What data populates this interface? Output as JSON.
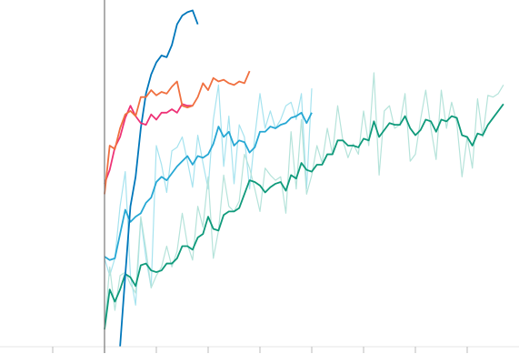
{
  "chart_data": {
    "type": "line",
    "xlim": [
      -20,
      80
    ],
    "ylim": [
      0.519,
      0.719
    ],
    "xticks": [
      -10,
      0,
      10,
      20,
      30,
      40,
      50,
      60,
      70
    ],
    "series": [
      {
        "color": "#a6e3ef",
        "width": 1.2,
        "x": [
          0,
          1,
          2,
          3,
          4,
          5,
          6,
          7,
          8,
          9,
          10,
          11,
          12,
          13,
          14,
          15,
          16,
          17,
          18,
          19,
          20,
          21,
          22,
          23,
          24,
          25,
          26,
          27,
          28,
          29,
          30,
          31,
          32,
          33,
          34,
          35,
          36,
          37,
          38,
          39,
          40
        ],
        "values": [
          0.57,
          0.56,
          0.57,
          0.6,
          0.62,
          0.56,
          0.543,
          0.593,
          0.57,
          0.553,
          0.635,
          0.624,
          0.608,
          0.632,
          0.634,
          0.64,
          0.626,
          0.611,
          0.641,
          0.625,
          0.61,
          0.65,
          0.67,
          0.623,
          0.652,
          0.613,
          0.647,
          0.64,
          0.61,
          0.64,
          0.665,
          0.645,
          0.655,
          0.645,
          0.65,
          0.658,
          0.66,
          0.65,
          0.665,
          0.61,
          0.668
        ]
      },
      {
        "color": "#b5e3da",
        "width": 1.2,
        "x": [
          0,
          1,
          2,
          3,
          4,
          5,
          6,
          7,
          8,
          9,
          10,
          11,
          12,
          13,
          14,
          15,
          16,
          17,
          18,
          19,
          20,
          21,
          22,
          23,
          24,
          25,
          26,
          27,
          28,
          29,
          30,
          31,
          32,
          33,
          34,
          35,
          36,
          37,
          38,
          39,
          40,
          41,
          42,
          43,
          44,
          45,
          46,
          47,
          48,
          49,
          50,
          51,
          52,
          53,
          54,
          55,
          56,
          57,
          58,
          59,
          60,
          61,
          62,
          63,
          64,
          65,
          66,
          67,
          68,
          69,
          70,
          71,
          72,
          73,
          74,
          75,
          76,
          77
        ],
        "values": [
          0.53,
          0.565,
          0.54,
          0.56,
          0.562,
          0.555,
          0.55,
          0.594,
          0.575,
          0.553,
          0.56,
          0.565,
          0.577,
          0.565,
          0.574,
          0.596,
          0.578,
          0.569,
          0.6,
          0.588,
          0.617,
          0.57,
          0.586,
          0.618,
          0.6,
          0.597,
          0.603,
          0.63,
          0.622,
          0.61,
          0.597,
          0.622,
          0.618,
          0.615,
          0.617,
          0.596,
          0.643,
          0.61,
          0.65,
          0.607,
          0.618,
          0.635,
          0.625,
          0.645,
          0.63,
          0.658,
          0.638,
          0.628,
          0.636,
          0.63,
          0.655,
          0.635,
          0.677,
          0.618,
          0.655,
          0.658,
          0.645,
          0.647,
          0.665,
          0.626,
          0.63,
          0.65,
          0.667,
          0.645,
          0.627,
          0.667,
          0.645,
          0.66,
          0.648,
          0.617,
          0.64,
          0.622,
          0.662,
          0.64,
          0.664,
          0.663,
          0.665,
          0.67
        ]
      },
      {
        "color": "#0f9a7b",
        "width": 1.8,
        "x": [
          0,
          1,
          2,
          3,
          4,
          5,
          6,
          7,
          8,
          9,
          10,
          11,
          12,
          13,
          14,
          15,
          16,
          17,
          18,
          19,
          20,
          21,
          22,
          23,
          24,
          25,
          26,
          27,
          28,
          29,
          30,
          31,
          32,
          33,
          34,
          35,
          36,
          37,
          38,
          39,
          40,
          41,
          42,
          43,
          44,
          45,
          46,
          47,
          48,
          49,
          50,
          51,
          52,
          53,
          54,
          55,
          56,
          57,
          58,
          59,
          60,
          61,
          62,
          63,
          64,
          65,
          66,
          67,
          68,
          69,
          70,
          71,
          72,
          73,
          74,
          75,
          76,
          77
        ],
        "values": [
          0.529,
          0.552,
          0.545,
          0.552,
          0.561,
          0.559,
          0.554,
          0.566,
          0.567,
          0.563,
          0.562,
          0.563,
          0.567,
          0.567,
          0.57,
          0.577,
          0.577,
          0.575,
          0.582,
          0.584,
          0.594,
          0.587,
          0.586,
          0.595,
          0.597,
          0.597,
          0.599,
          0.607,
          0.615,
          0.614,
          0.612,
          0.608,
          0.611,
          0.613,
          0.614,
          0.609,
          0.618,
          0.616,
          0.625,
          0.621,
          0.62,
          0.624,
          0.624,
          0.63,
          0.63,
          0.638,
          0.638,
          0.635,
          0.635,
          0.634,
          0.639,
          0.638,
          0.649,
          0.64,
          0.644,
          0.648,
          0.647,
          0.647,
          0.652,
          0.645,
          0.641,
          0.644,
          0.65,
          0.649,
          0.643,
          0.65,
          0.649,
          0.652,
          0.651,
          0.641,
          0.64,
          0.635,
          0.642,
          0.641,
          0.647,
          0.651,
          0.655,
          0.659
        ]
      },
      {
        "color": "#27a8d4",
        "width": 1.8,
        "x": [
          0,
          1,
          2,
          3,
          4,
          5,
          6,
          7,
          8,
          9,
          10,
          11,
          12,
          13,
          14,
          15,
          16,
          17,
          18,
          19,
          20,
          21,
          22,
          23,
          24,
          25,
          26,
          27,
          28,
          29,
          30,
          31,
          32,
          33,
          34,
          35,
          36,
          37,
          38,
          39,
          40
        ],
        "values": [
          0.571,
          0.569,
          0.57,
          0.584,
          0.598,
          0.591,
          0.594,
          0.596,
          0.602,
          0.605,
          0.614,
          0.617,
          0.615,
          0.619,
          0.623,
          0.626,
          0.629,
          0.624,
          0.629,
          0.628,
          0.63,
          0.636,
          0.646,
          0.64,
          0.643,
          0.635,
          0.638,
          0.637,
          0.631,
          0.634,
          0.643,
          0.643,
          0.646,
          0.645,
          0.647,
          0.648,
          0.651,
          0.652,
          0.654,
          0.648,
          0.654
        ]
      },
      {
        "color": "#0077bb",
        "width": 1.8,
        "x": [
          3,
          4,
          5,
          6,
          7,
          8,
          9,
          10,
          11,
          12,
          13,
          14,
          15,
          16,
          17,
          18
        ],
        "values": [
          0.519,
          0.56,
          0.6,
          0.617,
          0.645,
          0.665,
          0.676,
          0.683,
          0.687,
          0.686,
          0.693,
          0.705,
          0.71,
          0.712,
          0.713,
          0.705
        ]
      },
      {
        "color": "#ee3377",
        "width": 1.8,
        "x": [
          0,
          1,
          2,
          3,
          4,
          5,
          6,
          7,
          8,
          9,
          10,
          11,
          12,
          13,
          14,
          15,
          16,
          17
        ],
        "values": [
          0.613,
          0.621,
          0.634,
          0.64,
          0.651,
          0.658,
          0.652,
          0.648,
          0.647,
          0.653,
          0.65,
          0.654,
          0.654,
          0.656,
          0.654,
          0.659,
          0.658,
          0.658
        ]
      },
      {
        "color": "#f07040",
        "width": 1.8,
        "x": [
          0,
          1,
          2,
          3,
          4,
          5,
          6,
          7,
          8,
          9,
          10,
          11,
          12,
          13,
          14,
          15,
          16,
          17,
          18,
          19,
          20,
          21,
          22,
          23,
          24,
          25,
          26,
          27,
          28
        ],
        "values": [
          0.607,
          0.635,
          0.633,
          0.645,
          0.653,
          0.655,
          0.652,
          0.663,
          0.663,
          0.667,
          0.664,
          0.666,
          0.665,
          0.669,
          0.672,
          0.658,
          0.657,
          0.658,
          0.663,
          0.671,
          0.667,
          0.674,
          0.672,
          0.673,
          0.671,
          0.67,
          0.672,
          0.671,
          0.678
        ]
      }
    ]
  }
}
